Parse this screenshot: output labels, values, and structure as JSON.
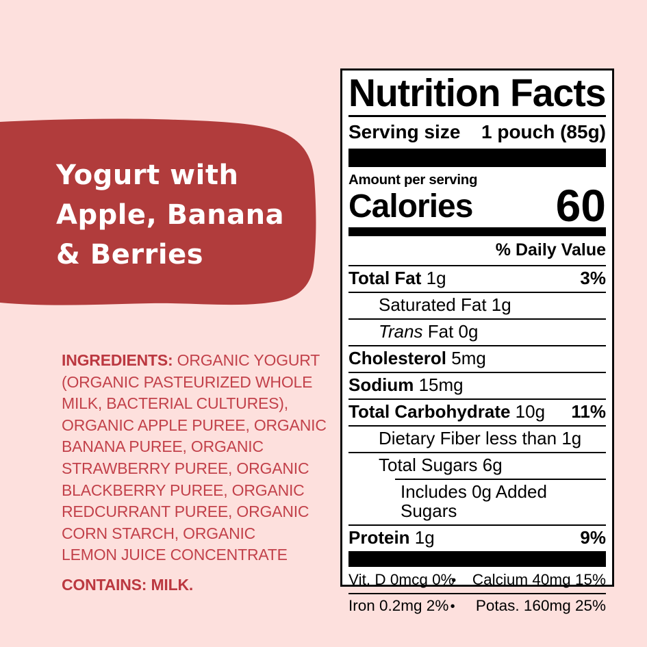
{
  "colors": {
    "page_background": "#fde0dd",
    "blob_red": "#b13c3c",
    "ingredients_red": "#c2414a",
    "label_background": "#ffffff",
    "label_ink": "#0a0a0a",
    "title_text": "#ffffff"
  },
  "hero": {
    "title": "Yogurt with Apple, Banana & Berries",
    "title_lines": [
      "Yogurt with",
      "Apple, Banana",
      "& Berries"
    ]
  },
  "ingredients": {
    "heading": "INGREDIENTS:",
    "full_text": "INGREDIENTS: ORGANIC YOGURT (ORGANIC PASTEURIZED WHOLE MILK, BACTERIAL CULTURES), ORGANIC APPLE PUREE, ORGANIC BANANA PUREE, ORGANIC STRAWBERRY PUREE, ORGANIC BLACKBERRY PUREE, ORGANIC REDCURRANT PUREE, ORGANIC CORN STARCH, ORGANIC LEMON JUICE CONCENTRATE",
    "lines": [
      "INGREDIENTS: ORGANIC YOGURT",
      "(ORGANIC PASTEURIZED WHOLE",
      "MILK, BACTERIAL CULTURES),",
      "ORGANIC APPLE PUREE, ORGANIC",
      "BANANA PUREE, ORGANIC",
      "STRAWBERRY PUREE, ORGANIC",
      "BLACKBERRY PUREE, ORGANIC",
      "REDCURRANT PUREE, ORGANIC",
      "CORN STARCH, ORGANIC",
      "LEMON JUICE CONCENTRATE"
    ],
    "contains": "CONTAINS: MILK."
  },
  "nutrition_label": {
    "title": "Nutrition Facts",
    "serving_size_label": "Serving size",
    "serving_size_value": "1 pouch (85g)",
    "amount_per_serving": "Amount per serving",
    "calories_label": "Calories",
    "calories_value": "60",
    "daily_value_header": "% Daily Value",
    "rows": [
      {
        "parts": [
          {
            "t": "Total Fat",
            "b": true
          },
          {
            "t": " 1g"
          }
        ],
        "pct": "3%",
        "indent": 0
      },
      {
        "parts": [
          {
            "t": "Saturated Fat 1g"
          }
        ],
        "pct": "",
        "indent": 1
      },
      {
        "parts": [
          {
            "t": "Trans",
            "i": true
          },
          {
            "t": " Fat 0g"
          }
        ],
        "pct": "",
        "indent": 1
      },
      {
        "parts": [
          {
            "t": "Cholesterol",
            "b": true
          },
          {
            "t": " 5mg"
          }
        ],
        "pct": "",
        "indent": 0
      },
      {
        "parts": [
          {
            "t": "Sodium",
            "b": true
          },
          {
            "t": " 15mg"
          }
        ],
        "pct": "",
        "indent": 0
      },
      {
        "parts": [
          {
            "t": "Total Carbohydrate",
            "b": true
          },
          {
            "t": " 10g"
          }
        ],
        "pct": "11%",
        "indent": 0
      },
      {
        "parts": [
          {
            "t": "Dietary Fiber less than 1g"
          }
        ],
        "pct": "",
        "indent": 1
      },
      {
        "parts": [
          {
            "t": "Total Sugars 6g"
          }
        ],
        "pct": "",
        "indent": 1
      },
      {
        "parts": [
          {
            "t": "Includes 0g Added Sugars"
          }
        ],
        "pct": "",
        "indent": 2,
        "rule": "indent"
      },
      {
        "parts": [
          {
            "t": "Protein",
            "b": true
          },
          {
            "t": " 1g"
          }
        ],
        "pct": "9%",
        "indent": 0
      }
    ],
    "bullet": "•",
    "micronutrients": [
      {
        "left": "Vit. D 0mcg 0%",
        "right": "Calcium 40mg 15%"
      },
      {
        "left": "Iron 0.2mg 2%",
        "right": "Potas. 160mg 25%"
      }
    ]
  }
}
